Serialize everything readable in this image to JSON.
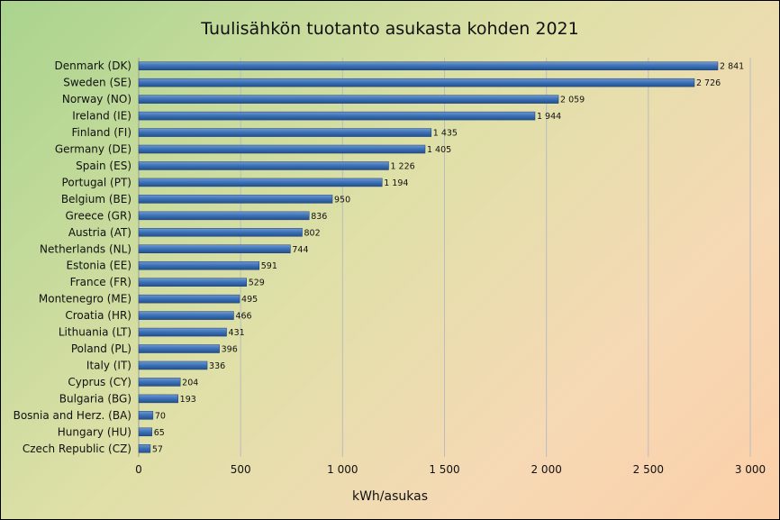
{
  "chart_data": {
    "type": "bar",
    "orientation": "horizontal",
    "title": "Tuulisähkön tuotanto asukasta kohden 2021",
    "xlabel": "kWh/asukas",
    "ylabel": "",
    "xlim": [
      0,
      3000
    ],
    "xticks": [
      0,
      500,
      1000,
      1500,
      2000,
      2500,
      3000
    ],
    "xtick_labels": [
      "0",
      "500",
      "1 000",
      "1 500",
      "2 000",
      "2 500",
      "3 000"
    ],
    "grid": true,
    "legend": "none",
    "bar_color": "#3f73b8",
    "categories": [
      "Denmark (DK)",
      "Sweden (SE)",
      "Norway (NO)",
      "Ireland (IE)",
      "Finland (FI)",
      "Germany (DE)",
      "Spain (ES)",
      "Portugal (PT)",
      "Belgium (BE)",
      "Greece (GR)",
      "Austria (AT)",
      "Netherlands (NL)",
      "Estonia (EE)",
      "France (FR)",
      "Montenegro (ME)",
      "Croatia (HR)",
      "Lithuania (LT)",
      "Poland (PL)",
      "Italy (IT)",
      "Cyprus (CY)",
      "Bulgaria (BG)",
      "Bosnia and Herz. (BA)",
      "Hungary (HU)",
      "Czech Republic (CZ)"
    ],
    "values": [
      2841,
      2726,
      2059,
      1944,
      1435,
      1405,
      1226,
      1194,
      950,
      836,
      802,
      744,
      591,
      529,
      495,
      466,
      431,
      396,
      336,
      204,
      193,
      70,
      65,
      57
    ],
    "value_labels": [
      "2 841",
      "2 726",
      "2 059",
      "1 944",
      "1 435",
      "1 405",
      "1 226",
      "1 194",
      "950",
      "836",
      "802",
      "744",
      "591",
      "529",
      "495",
      "466",
      "431",
      "396",
      "336",
      "204",
      "193",
      "70",
      "65",
      "57"
    ]
  }
}
